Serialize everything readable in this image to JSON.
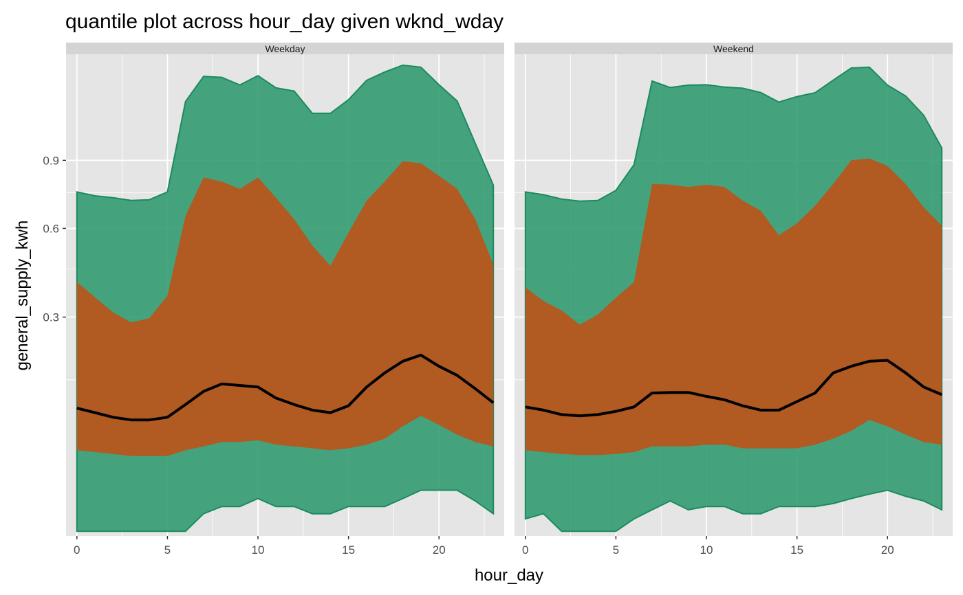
{
  "chart_data": {
    "type": "area",
    "title": "quantile plot across hour_day given wknd_wday",
    "xlabel": "hour_day",
    "ylabel": "general_supply_kwh",
    "x_ticks": [
      0,
      5,
      10,
      15,
      20
    ],
    "y_ticks": [
      0.3,
      0.6,
      0.9
    ],
    "y_tick_labels": [
      "0.3",
      "0.6",
      "0.9"
    ],
    "x_scale": "linear",
    "y_scale": "sqrt",
    "xlim": [
      -0.6,
      23.6
    ],
    "grid": true,
    "colors": {
      "outer_band": "#2E9A6E",
      "outer_band_line": "#1B8A5E",
      "inner_band": "#B5581E",
      "median": "#000000",
      "panel_bg": "#E5E5E5",
      "strip_bg": "#D4D4D4",
      "grid": "#FFFFFF"
    },
    "hours": [
      0,
      1,
      2,
      3,
      4,
      5,
      6,
      7,
      8,
      9,
      10,
      11,
      12,
      13,
      14,
      15,
      16,
      17,
      18,
      19,
      20,
      21,
      22,
      23
    ],
    "facets": [
      {
        "label": "Weekday",
        "q10": [
          0.0,
          0.0,
          0.0,
          0.0,
          0.0,
          0.0,
          0.0,
          0.002,
          0.004,
          0.004,
          0.007,
          0.004,
          0.004,
          0.002,
          0.002,
          0.004,
          0.004,
          0.004,
          0.007,
          0.011,
          0.011,
          0.011,
          0.006,
          0.002
        ],
        "q25": [
          0.043,
          0.041,
          0.039,
          0.037,
          0.037,
          0.037,
          0.043,
          0.047,
          0.052,
          0.052,
          0.054,
          0.049,
          0.047,
          0.045,
          0.043,
          0.045,
          0.049,
          0.056,
          0.072,
          0.087,
          0.074,
          0.061,
          0.052,
          0.047
        ],
        "q50": [
          0.099,
          0.092,
          0.085,
          0.081,
          0.081,
          0.085,
          0.105,
          0.128,
          0.142,
          0.139,
          0.136,
          0.116,
          0.105,
          0.096,
          0.092,
          0.103,
          0.136,
          0.164,
          0.189,
          0.203,
          0.178,
          0.159,
          0.133,
          0.108
        ],
        "q75": [
          0.407,
          0.358,
          0.313,
          0.285,
          0.297,
          0.363,
          0.651,
          0.819,
          0.8,
          0.767,
          0.819,
          0.727,
          0.637,
          0.534,
          0.461,
          0.583,
          0.715,
          0.8,
          0.896,
          0.886,
          0.826,
          0.767,
          0.637,
          0.465
        ],
        "q90": [
          0.753,
          0.736,
          0.728,
          0.716,
          0.719,
          0.753,
          1.208,
          1.354,
          1.348,
          1.303,
          1.358,
          1.286,
          1.268,
          1.143,
          1.143,
          1.218,
          1.33,
          1.38,
          1.421,
          1.409,
          1.304,
          1.211,
          0.985,
          0.784
        ]
      },
      {
        "label": "Weekend",
        "q10": [
          0.001,
          0.002,
          0.0,
          0.0,
          0.0,
          0.0,
          0.001,
          0.003,
          0.006,
          0.003,
          0.004,
          0.004,
          0.002,
          0.002,
          0.004,
          0.004,
          0.004,
          0.005,
          0.007,
          0.009,
          0.011,
          0.008,
          0.006,
          0.003
        ],
        "q25": [
          0.043,
          0.041,
          0.039,
          0.038,
          0.038,
          0.039,
          0.041,
          0.047,
          0.047,
          0.047,
          0.049,
          0.049,
          0.045,
          0.045,
          0.045,
          0.045,
          0.049,
          0.056,
          0.066,
          0.081,
          0.072,
          0.061,
          0.052,
          0.049
        ],
        "q50": [
          0.101,
          0.096,
          0.089,
          0.087,
          0.089,
          0.094,
          0.101,
          0.125,
          0.126,
          0.126,
          0.119,
          0.113,
          0.103,
          0.096,
          0.096,
          0.11,
          0.125,
          0.164,
          0.178,
          0.189,
          0.191,
          0.164,
          0.136,
          0.122
        ],
        "q75": [
          0.389,
          0.347,
          0.319,
          0.279,
          0.307,
          0.357,
          0.406,
          0.789,
          0.786,
          0.775,
          0.786,
          0.775,
          0.715,
          0.672,
          0.573,
          0.62,
          0.694,
          0.789,
          0.901,
          0.909,
          0.873,
          0.789,
          0.686,
          0.611
        ],
        "q90": [
          0.753,
          0.741,
          0.722,
          0.713,
          0.716,
          0.76,
          0.879,
          1.326,
          1.288,
          1.302,
          1.304,
          1.291,
          1.284,
          1.259,
          1.205,
          1.236,
          1.258,
          1.331,
          1.404,
          1.409,
          1.302,
          1.24,
          1.132,
          0.961
        ]
      }
    ]
  }
}
